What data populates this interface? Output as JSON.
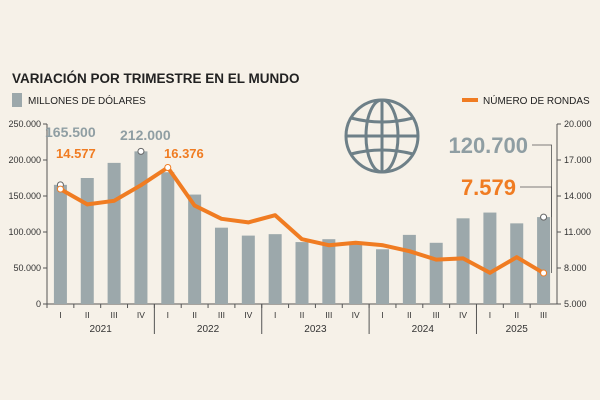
{
  "colors": {
    "bar": "#9ca8ab",
    "line": "#f07c22",
    "axis": "#555555",
    "annotation_bar": "#8f9ea3"
  },
  "chart_data": {
    "type": "bar",
    "title": "VARIACIÓN POR TRIMESTRE EN EL MUNDO",
    "legend_bars": "MILLONES DE DÓLARES",
    "legend_line": "NÚMERO DE RONDAS",
    "categories": [
      "I",
      "II",
      "III",
      "IV",
      "I",
      "II",
      "III",
      "IV",
      "I",
      "II",
      "III",
      "IV",
      "I",
      "II",
      "III",
      "IV",
      "I",
      "II",
      "III"
    ],
    "years": [
      {
        "label": "2021",
        "from": 0,
        "to": 3
      },
      {
        "label": "2022",
        "from": 4,
        "to": 7
      },
      {
        "label": "2023",
        "from": 8,
        "to": 11
      },
      {
        "label": "2024",
        "from": 12,
        "to": 15
      },
      {
        "label": "2025",
        "from": 16,
        "to": 18
      }
    ],
    "left_axis": {
      "min": 0,
      "max": 250000,
      "ticks": [
        "0",
        "50.000",
        "100.000",
        "150.000",
        "200.000",
        "250.000"
      ],
      "tick_values": [
        0,
        50000,
        100000,
        150000,
        200000,
        250000
      ]
    },
    "right_axis": {
      "min": 5000,
      "max": 20000,
      "ticks": [
        "5.000",
        "8.000",
        "11.000",
        "14.000",
        "17.000",
        "20.000"
      ],
      "tick_values": [
        5000,
        8000,
        11000,
        14000,
        17000,
        20000
      ]
    },
    "series": [
      {
        "name": "MILLONES DE DÓLARES",
        "kind": "bar",
        "axis": "left",
        "values": [
          165500,
          175000,
          196000,
          212000,
          183000,
          152000,
          106000,
          95000,
          97000,
          86000,
          90000,
          85000,
          76000,
          96000,
          85000,
          119000,
          127000,
          112000,
          120700
        ]
      },
      {
        "name": "NÚMERO DE RONDAS",
        "kind": "line",
        "axis": "right",
        "values": [
          14577,
          13300,
          13600,
          14900,
          16376,
          13200,
          12100,
          11800,
          12400,
          10400,
          9900,
          10100,
          9900,
          9400,
          8700,
          8800,
          7600,
          8900,
          7579
        ]
      }
    ],
    "annotations": [
      {
        "series": 0,
        "index": 0,
        "text": "165.500",
        "size": "small"
      },
      {
        "series": 0,
        "index": 3,
        "text": "212.000",
        "size": "small"
      },
      {
        "series": 1,
        "index": 0,
        "text": "14.577",
        "size": "small"
      },
      {
        "series": 1,
        "index": 4,
        "text": "16.376",
        "size": "small"
      },
      {
        "series": 0,
        "index": 18,
        "text": "120.700",
        "size": "big"
      },
      {
        "series": 1,
        "index": 18,
        "text": "7.579",
        "size": "big"
      }
    ],
    "grid": false,
    "legend_placement": "top"
  },
  "icons": {
    "globe": "globe-icon"
  }
}
